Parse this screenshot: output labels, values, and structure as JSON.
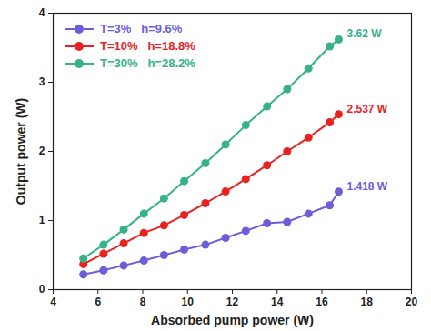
{
  "chart_data": {
    "type": "line",
    "x_label": "Absorbed pump power (W)",
    "y_label": "Output power (W)",
    "x": [
      5.35,
      6.25,
      7.15,
      8.05,
      8.95,
      9.85,
      10.8,
      11.7,
      12.6,
      13.55,
      14.45,
      15.4,
      16.35,
      16.75
    ],
    "series": [
      {
        "name": "T=3%   h=9.6%",
        "color": "#6a5fd8",
        "marker": "circle",
        "values": [
          0.22,
          0.28,
          0.35,
          0.42,
          0.5,
          0.58,
          0.65,
          0.75,
          0.85,
          0.96,
          0.98,
          1.1,
          1.22,
          1.418
        ]
      },
      {
        "name": "T=10%   h=18.8%",
        "color": "#e8221f",
        "marker": "circle",
        "values": [
          0.37,
          0.52,
          0.67,
          0.82,
          0.93,
          1.08,
          1.25,
          1.42,
          1.6,
          1.8,
          2.0,
          2.2,
          2.42,
          2.537
        ]
      },
      {
        "name": "T=30%   h=28.2%",
        "color": "#35b387",
        "marker": "circle",
        "values": [
          0.45,
          0.65,
          0.87,
          1.1,
          1.32,
          1.57,
          1.83,
          2.1,
          2.38,
          2.65,
          2.9,
          3.2,
          3.52,
          3.62
        ]
      }
    ],
    "annotations": [
      {
        "text": "3.62 W",
        "x": 16.75,
        "y": 3.62,
        "series": "T=30%   h=28.2%"
      },
      {
        "text": "2.537 W",
        "x": 16.75,
        "y": 2.537,
        "series": "T=10%   h=18.8%"
      },
      {
        "text": "1.418 W",
        "x": 16.75,
        "y": 1.418,
        "series": "T=3%   h=9.6%"
      }
    ],
    "xlim": [
      4,
      20
    ],
    "xticks": [
      4,
      6,
      8,
      10,
      12,
      14,
      16,
      18,
      20
    ],
    "ylim": [
      0,
      4
    ],
    "yticks": [
      0,
      1,
      2,
      3,
      4
    ],
    "grid": false,
    "legend": "top-left"
  }
}
